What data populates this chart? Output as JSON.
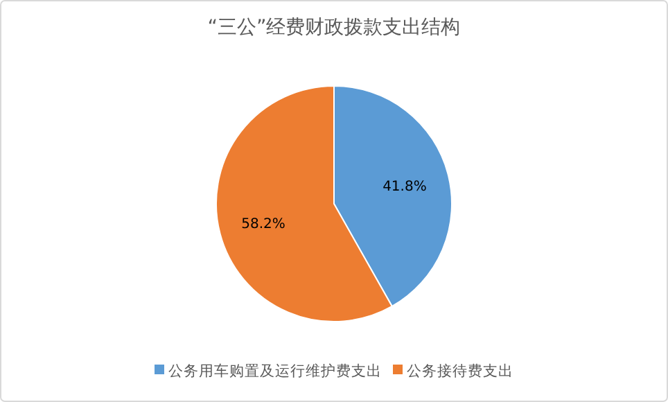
{
  "chart_data": {
    "type": "pie",
    "title": "“三公”经费财政拨款支出结构",
    "categories": [
      "公务用车购置及运行维护费支出",
      "公务接待费支出"
    ],
    "values": [
      41.8,
      58.2
    ],
    "colors": [
      "#5b9bd5",
      "#ed7d31"
    ],
    "value_labels": [
      "41.8%",
      "58.2%"
    ],
    "legend": "bottom"
  }
}
